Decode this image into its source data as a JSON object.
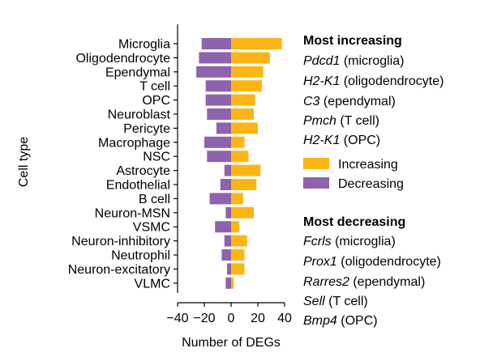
{
  "chart_data": {
    "type": "bar",
    "orientation": "horizontal",
    "stacked": "diverging",
    "categories": [
      "Microglia",
      "Oligodendrocyte",
      "Ependymal",
      "T cell",
      "OPC",
      "Neuroblast",
      "Pericyte",
      "Macrophage",
      "NSC",
      "Astrocyte",
      "Endothelial",
      "B cell",
      "Neuron-MSN",
      "VSMC",
      "Neuron-inhibitory",
      "Neutrophil",
      "Neuron-excitatory",
      "VLMC"
    ],
    "series": [
      {
        "name": "Increasing",
        "color": "#FDB515",
        "values": [
          38,
          29,
          24,
          23,
          18,
          17,
          20,
          10,
          13,
          22,
          19,
          9,
          17,
          6,
          12,
          10,
          10,
          2
        ]
      },
      {
        "name": "Decreasing",
        "color": "#8E63AE",
        "values": [
          -22,
          -24,
          -26,
          -19,
          -19,
          -18,
          -11,
          -20,
          -18,
          -5,
          -8,
          -16,
          -4,
          -12,
          -5,
          -7,
          -3,
          -4
        ]
      }
    ],
    "xlabel": "Number of DEGs",
    "ylabel": "Cell type",
    "xlim": [
      -40,
      40
    ],
    "xticks": [
      -40,
      -20,
      0,
      20,
      40
    ],
    "xtick_labels": [
      "−40",
      "−20",
      "0",
      "20",
      "40"
    ],
    "grid": false,
    "legend": {
      "placement": "right",
      "entries": [
        "Increasing",
        "Decreasing"
      ]
    }
  },
  "annotations": {
    "increasing": {
      "title": "Most increasing",
      "items": [
        {
          "gene": "Pdcd1",
          "cell": " (microglia)"
        },
        {
          "gene": "H2-K1",
          "cell": " (oligodendrocyte)"
        },
        {
          "gene": "C3",
          "cell": " (ependymal)"
        },
        {
          "gene": "Pmch",
          "cell": " (T cell)"
        },
        {
          "gene": "H2-K1",
          "cell": " (OPC)"
        }
      ]
    },
    "decreasing": {
      "title": "Most decreasing",
      "items": [
        {
          "gene": "Fcrls",
          "cell": " (microglia)"
        },
        {
          "gene": "Prox1",
          "cell": " (oligodendrocyte)"
        },
        {
          "gene": "Rarres2",
          "cell": " (ependymal)"
        },
        {
          "gene": "Sell",
          "cell": " (T cell)"
        },
        {
          "gene": "Bmp4",
          "cell": " (OPC)"
        }
      ]
    }
  }
}
